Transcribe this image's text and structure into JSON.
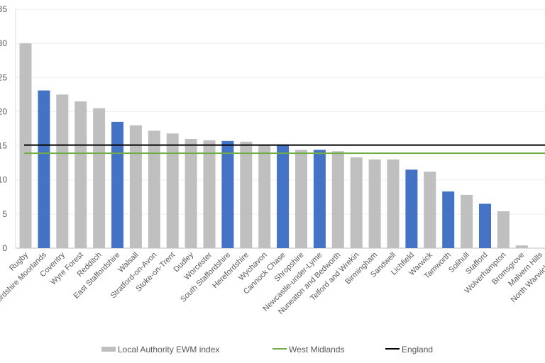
{
  "chart_data": {
    "type": "bar",
    "title": "",
    "xlabel": "",
    "ylabel": "",
    "ylim": [
      0,
      35
    ],
    "yticks": [
      "0",
      "5",
      "10",
      "15",
      "20",
      "25",
      "30",
      "35"
    ],
    "grid": true,
    "legend_position": "bottom",
    "categories": [
      "Rugby",
      "Staffordshire Moorlands",
      "Coventry",
      "Wyre Forest",
      "Redditch",
      "East Staffordshire",
      "Walsall",
      "Stratford-on-Avon",
      "Stoke-on-Trent",
      "Dudley",
      "Worcester",
      "South Staffordshire",
      "Herefordshire",
      "Wychavon",
      "Cannock Chase",
      "Shropshire",
      "Newcastle-under-Lyme",
      "Nuneaton and Bedworth",
      "Telford and Wrekin",
      "Birmingham",
      "Sandwell",
      "Lichfield",
      "Warwick",
      "Tamworth",
      "Solihull",
      "Stafford",
      "Wolverhampton",
      "Bromsgrove",
      "Malvern Hills",
      "North Warwickshire"
    ],
    "values": [
      30.0,
      23.1,
      22.5,
      21.5,
      20.5,
      18.5,
      18.0,
      17.2,
      16.8,
      16.0,
      15.8,
      15.7,
      15.6,
      15.0,
      15.0,
      14.4,
      14.4,
      14.2,
      13.3,
      13.0,
      13.0,
      11.5,
      11.2,
      8.3,
      7.8,
      6.5,
      5.4,
      0.4,
      0.0,
      0.0
    ],
    "highlighted": [
      false,
      true,
      false,
      false,
      false,
      true,
      false,
      false,
      false,
      false,
      false,
      true,
      false,
      false,
      true,
      false,
      true,
      false,
      false,
      false,
      false,
      true,
      false,
      true,
      false,
      true,
      false,
      false,
      false,
      false
    ],
    "series": [
      {
        "name": "Local Authority EWM index",
        "type": "bar",
        "color": "#bfbfbf",
        "highlight_color": "#4472c4"
      },
      {
        "name": "West Midlands",
        "type": "line",
        "value": 13.9,
        "color": "#70ad47"
      },
      {
        "name": "England",
        "type": "line",
        "value": 15.1,
        "color": "#000000"
      }
    ]
  }
}
